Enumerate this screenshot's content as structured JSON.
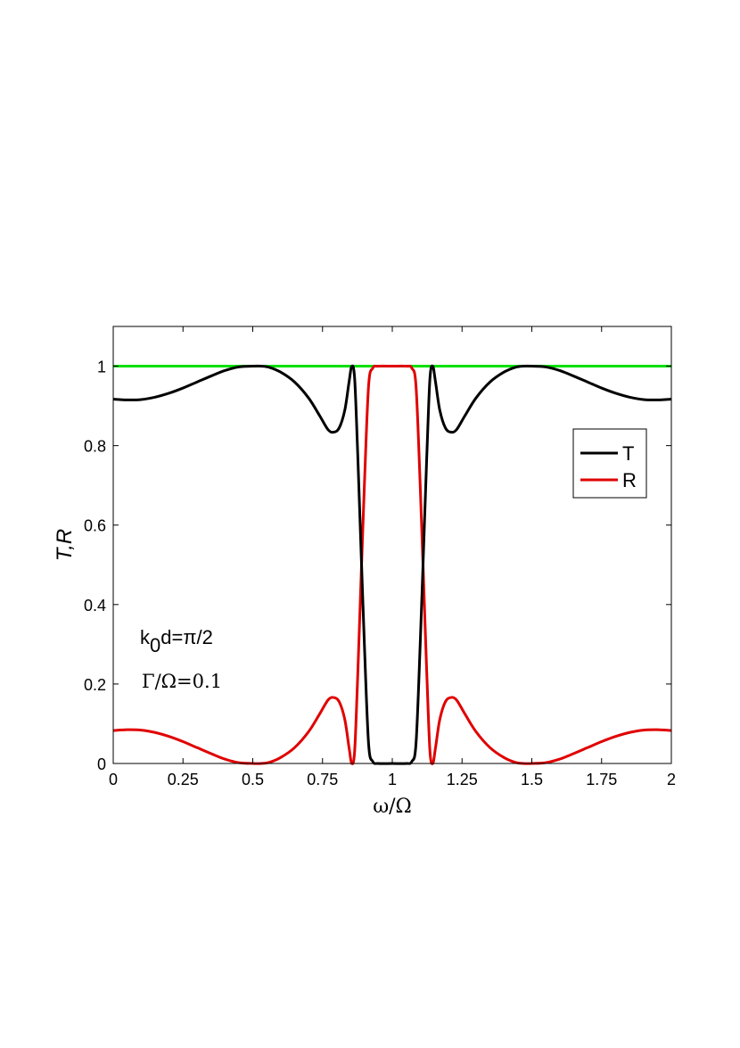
{
  "chart_data": {
    "type": "line",
    "xlabel": "ω/Ω",
    "ylabel": "T,R",
    "xlim": [
      0,
      2
    ],
    "ylim": [
      0,
      1.1
    ],
    "xticks": [
      0,
      0.25,
      0.5,
      0.75,
      1,
      1.25,
      1.5,
      1.75,
      2
    ],
    "xtick_labels": [
      "0",
      "0.25",
      "0.5",
      "0.75",
      "1",
      "1.25",
      "1.5",
      "1.75",
      "2"
    ],
    "yticks": [
      0,
      0.2,
      0.4,
      0.6,
      0.8,
      1
    ],
    "ytick_labels": [
      "0",
      "0.2",
      "0.4",
      "0.6",
      "0.8",
      "1"
    ],
    "grid": false,
    "legend_position": "upper-right",
    "annotations": {
      "k_main": "k",
      "k_sub": "0",
      "k_rest": "d=π/2",
      "gamma": "Γ/Ω=0.1"
    },
    "series": [
      {
        "name": "T",
        "color": "#000000",
        "x": [
          0,
          0.05,
          0.1,
          0.15,
          0.2,
          0.25,
          0.3,
          0.35,
          0.4,
          0.45,
          0.5,
          0.53,
          0.56,
          0.6,
          0.65,
          0.7,
          0.74,
          0.77,
          0.79,
          0.81,
          0.83,
          0.845,
          0.855,
          0.865,
          0.875,
          0.885,
          0.9,
          0.915,
          0.93,
          0.95,
          1.0,
          1.05,
          1.07,
          1.085,
          1.1,
          1.115,
          1.125,
          1.135,
          1.145,
          1.155,
          1.17,
          1.19,
          1.21,
          1.23,
          1.26,
          1.3,
          1.35,
          1.4,
          1.44,
          1.47,
          1.5,
          1.55,
          1.6,
          1.65,
          1.7,
          1.75,
          1.8,
          1.85,
          1.9,
          1.95,
          2.0
        ],
        "y": [
          0.917,
          0.915,
          0.916,
          0.922,
          0.932,
          0.945,
          0.96,
          0.975,
          0.989,
          0.998,
          1.0,
          1.0,
          0.997,
          0.985,
          0.96,
          0.92,
          0.875,
          0.84,
          0.834,
          0.845,
          0.89,
          0.96,
          1.0,
          0.97,
          0.8,
          0.6,
          0.3,
          0.05,
          0.005,
          0.0,
          0.0,
          0.0,
          0.005,
          0.05,
          0.3,
          0.6,
          0.8,
          0.97,
          1.0,
          0.96,
          0.89,
          0.845,
          0.834,
          0.84,
          0.875,
          0.92,
          0.96,
          0.985,
          0.997,
          1.0,
          1.0,
          0.998,
          0.989,
          0.975,
          0.96,
          0.945,
          0.932,
          0.922,
          0.916,
          0.915,
          0.917
        ]
      },
      {
        "name": "R",
        "color": "#e00000",
        "x": [
          0,
          0.05,
          0.1,
          0.15,
          0.2,
          0.25,
          0.3,
          0.35,
          0.4,
          0.45,
          0.5,
          0.53,
          0.56,
          0.6,
          0.65,
          0.7,
          0.74,
          0.77,
          0.79,
          0.81,
          0.83,
          0.845,
          0.855,
          0.865,
          0.875,
          0.885,
          0.9,
          0.915,
          0.93,
          0.95,
          1.0,
          1.05,
          1.07,
          1.085,
          1.1,
          1.115,
          1.125,
          1.135,
          1.145,
          1.155,
          1.17,
          1.19,
          1.21,
          1.23,
          1.26,
          1.3,
          1.35,
          1.4,
          1.44,
          1.47,
          1.5,
          1.55,
          1.6,
          1.65,
          1.7,
          1.75,
          1.8,
          1.85,
          1.9,
          1.95,
          2.0
        ],
        "y": [
          0.083,
          0.085,
          0.084,
          0.078,
          0.068,
          0.055,
          0.04,
          0.025,
          0.011,
          0.002,
          0.0,
          0.0,
          0.003,
          0.015,
          0.04,
          0.08,
          0.125,
          0.16,
          0.166,
          0.155,
          0.11,
          0.04,
          0.0,
          0.03,
          0.2,
          0.4,
          0.7,
          0.95,
          0.995,
          1.0,
          1.0,
          1.0,
          0.995,
          0.95,
          0.7,
          0.4,
          0.2,
          0.03,
          0.0,
          0.04,
          0.11,
          0.155,
          0.166,
          0.16,
          0.125,
          0.08,
          0.04,
          0.015,
          0.003,
          0.0,
          0.0,
          0.002,
          0.011,
          0.025,
          0.04,
          0.055,
          0.068,
          0.078,
          0.084,
          0.085,
          0.083
        ]
      },
      {
        "color": "#00e000",
        "x": [
          0,
          2
        ],
        "y": [
          1,
          1
        ]
      }
    ]
  }
}
